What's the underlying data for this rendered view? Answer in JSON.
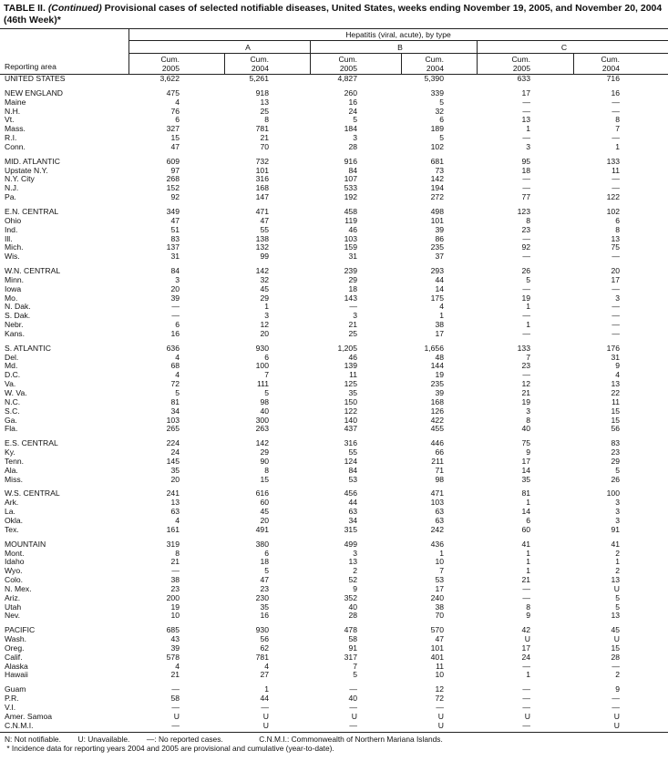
{
  "title": {
    "prefix": "TABLE II. ",
    "continued": "(Continued)",
    "text": " Provisional cases of selected notifiable diseases, United States, weeks ending November 19, 2005, and November 20, 2004 (46th Week)*"
  },
  "header": {
    "group": "Hepatitis (viral, acute), by type",
    "types": [
      "A",
      "B",
      "C"
    ],
    "reporting_area": "Reporting area",
    "cum": "Cum.",
    "years": [
      "2005",
      "2004",
      "2005",
      "2004",
      "2005",
      "2004"
    ]
  },
  "groups": [
    [
      [
        "UNITED STATES",
        "3,622",
        "5,261",
        "4,827",
        "5,390",
        "633",
        "716"
      ]
    ],
    [
      [
        "NEW ENGLAND",
        "475",
        "918",
        "260",
        "339",
        "17",
        "16"
      ],
      [
        "Maine",
        "4",
        "13",
        "16",
        "5",
        "—",
        "—"
      ],
      [
        "N.H.",
        "76",
        "25",
        "24",
        "32",
        "—",
        "—"
      ],
      [
        "Vt.",
        "6",
        "8",
        "5",
        "6",
        "13",
        "8"
      ],
      [
        "Mass.",
        "327",
        "781",
        "184",
        "189",
        "1",
        "7"
      ],
      [
        "R.I.",
        "15",
        "21",
        "3",
        "5",
        "—",
        "—"
      ],
      [
        "Conn.",
        "47",
        "70",
        "28",
        "102",
        "3",
        "1"
      ]
    ],
    [
      [
        "MID. ATLANTIC",
        "609",
        "732",
        "916",
        "681",
        "95",
        "133"
      ],
      [
        "Upstate N.Y.",
        "97",
        "101",
        "84",
        "73",
        "18",
        "11"
      ],
      [
        "N.Y. City",
        "268",
        "316",
        "107",
        "142",
        "—",
        "—"
      ],
      [
        "N.J.",
        "152",
        "168",
        "533",
        "194",
        "—",
        "—"
      ],
      [
        "Pa.",
        "92",
        "147",
        "192",
        "272",
        "77",
        "122"
      ]
    ],
    [
      [
        "E.N. CENTRAL",
        "349",
        "471",
        "458",
        "498",
        "123",
        "102"
      ],
      [
        "Ohio",
        "47",
        "47",
        "119",
        "101",
        "8",
        "6"
      ],
      [
        "Ind.",
        "51",
        "55",
        "46",
        "39",
        "23",
        "8"
      ],
      [
        "Ill.",
        "83",
        "138",
        "103",
        "86",
        "—",
        "13"
      ],
      [
        "Mich.",
        "137",
        "132",
        "159",
        "235",
        "92",
        "75"
      ],
      [
        "Wis.",
        "31",
        "99",
        "31",
        "37",
        "—",
        "—"
      ]
    ],
    [
      [
        "W.N. CENTRAL",
        "84",
        "142",
        "239",
        "293",
        "26",
        "20"
      ],
      [
        "Minn.",
        "3",
        "32",
        "29",
        "44",
        "5",
        "17"
      ],
      [
        "Iowa",
        "20",
        "45",
        "18",
        "14",
        "—",
        "—"
      ],
      [
        "Mo.",
        "39",
        "29",
        "143",
        "175",
        "19",
        "3"
      ],
      [
        "N. Dak.",
        "—",
        "1",
        "—",
        "4",
        "1",
        "—"
      ],
      [
        "S. Dak.",
        "—",
        "3",
        "3",
        "1",
        "—",
        "—"
      ],
      [
        "Nebr.",
        "6",
        "12",
        "21",
        "38",
        "1",
        "—"
      ],
      [
        "Kans.",
        "16",
        "20",
        "25",
        "17",
        "—",
        "—"
      ]
    ],
    [
      [
        "S. ATLANTIC",
        "636",
        "930",
        "1,205",
        "1,656",
        "133",
        "176"
      ],
      [
        "Del.",
        "4",
        "6",
        "46",
        "48",
        "7",
        "31"
      ],
      [
        "Md.",
        "68",
        "100",
        "139",
        "144",
        "23",
        "9"
      ],
      [
        "D.C.",
        "4",
        "7",
        "11",
        "19",
        "—",
        "4"
      ],
      [
        "Va.",
        "72",
        "111",
        "125",
        "235",
        "12",
        "13"
      ],
      [
        "W. Va.",
        "5",
        "5",
        "35",
        "39",
        "21",
        "22"
      ],
      [
        "N.C.",
        "81",
        "98",
        "150",
        "168",
        "19",
        "11"
      ],
      [
        "S.C.",
        "34",
        "40",
        "122",
        "126",
        "3",
        "15"
      ],
      [
        "Ga.",
        "103",
        "300",
        "140",
        "422",
        "8",
        "15"
      ],
      [
        "Fla.",
        "265",
        "263",
        "437",
        "455",
        "40",
        "56"
      ]
    ],
    [
      [
        "E.S. CENTRAL",
        "224",
        "142",
        "316",
        "446",
        "75",
        "83"
      ],
      [
        "Ky.",
        "24",
        "29",
        "55",
        "66",
        "9",
        "23"
      ],
      [
        "Tenn.",
        "145",
        "90",
        "124",
        "211",
        "17",
        "29"
      ],
      [
        "Ala.",
        "35",
        "8",
        "84",
        "71",
        "14",
        "5"
      ],
      [
        "Miss.",
        "20",
        "15",
        "53",
        "98",
        "35",
        "26"
      ]
    ],
    [
      [
        "W.S. CENTRAL",
        "241",
        "616",
        "456",
        "471",
        "81",
        "100"
      ],
      [
        "Ark.",
        "13",
        "60",
        "44",
        "103",
        "1",
        "3"
      ],
      [
        "La.",
        "63",
        "45",
        "63",
        "63",
        "14",
        "3"
      ],
      [
        "Okla.",
        "4",
        "20",
        "34",
        "63",
        "6",
        "3"
      ],
      [
        "Tex.",
        "161",
        "491",
        "315",
        "242",
        "60",
        "91"
      ]
    ],
    [
      [
        "MOUNTAIN",
        "319",
        "380",
        "499",
        "436",
        "41",
        "41"
      ],
      [
        "Mont.",
        "8",
        "6",
        "3",
        "1",
        "1",
        "2"
      ],
      [
        "Idaho",
        "21",
        "18",
        "13",
        "10",
        "1",
        "1"
      ],
      [
        "Wyo.",
        "—",
        "5",
        "2",
        "7",
        "1",
        "2"
      ],
      [
        "Colo.",
        "38",
        "47",
        "52",
        "53",
        "21",
        "13"
      ],
      [
        "N. Mex.",
        "23",
        "23",
        "9",
        "17",
        "—",
        "U"
      ],
      [
        "Ariz.",
        "200",
        "230",
        "352",
        "240",
        "—",
        "5"
      ],
      [
        "Utah",
        "19",
        "35",
        "40",
        "38",
        "8",
        "5"
      ],
      [
        "Nev.",
        "10",
        "16",
        "28",
        "70",
        "9",
        "13"
      ]
    ],
    [
      [
        "PACIFIC",
        "685",
        "930",
        "478",
        "570",
        "42",
        "45"
      ],
      [
        "Wash.",
        "43",
        "56",
        "58",
        "47",
        "U",
        "U"
      ],
      [
        "Oreg.",
        "39",
        "62",
        "91",
        "101",
        "17",
        "15"
      ],
      [
        "Calif.",
        "578",
        "781",
        "317",
        "401",
        "24",
        "28"
      ],
      [
        "Alaska",
        "4",
        "4",
        "7",
        "11",
        "—",
        "—"
      ],
      [
        "Hawaii",
        "21",
        "27",
        "5",
        "10",
        "1",
        "2"
      ]
    ],
    [
      [
        "Guam",
        "—",
        "1",
        "—",
        "12",
        "—",
        "9"
      ],
      [
        "P.R.",
        "58",
        "44",
        "40",
        "72",
        "—",
        "—"
      ],
      [
        "V.I.",
        "—",
        "—",
        "—",
        "—",
        "—",
        "—"
      ],
      [
        "Amer. Samoa",
        "U",
        "U",
        "U",
        "U",
        "U",
        "U"
      ],
      [
        "C.N.M.I.",
        "—",
        "U",
        "—",
        "U",
        "—",
        "U"
      ]
    ]
  ],
  "footnotes": {
    "legend": "N: Not notifiable.        U: Unavailable.        —: No reported cases.                 C.N.M.I.: Commonwealth of Northern Mariana Islands.",
    "note": " * Incidence data for reporting years 2004 and 2005 are provisional and cumulative (year-to-date)."
  }
}
